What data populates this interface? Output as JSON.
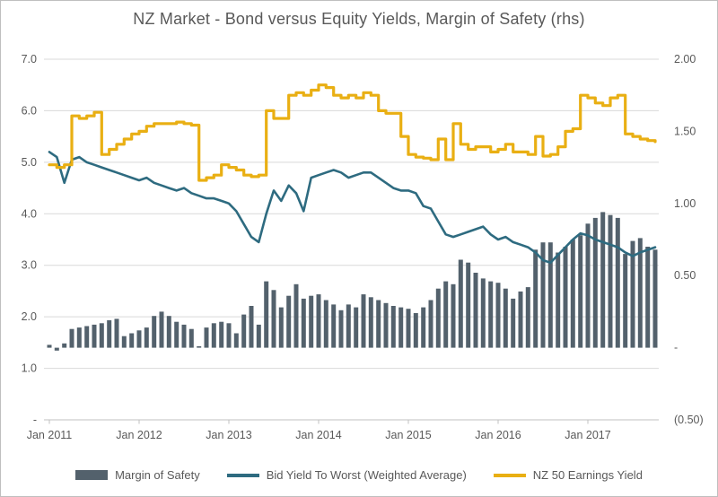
{
  "title": "NZ Market - Bond versus Equity Yields, Margin of Safety (rhs)",
  "axes": {
    "left": {
      "tick_labels": [
        "7.0",
        "6.0",
        "5.0",
        "4.0",
        "3.0",
        "2.0",
        "1.0",
        "-"
      ],
      "tick_values": [
        7,
        6,
        5,
        4,
        3,
        2,
        1,
        0
      ],
      "range": [
        0,
        7
      ]
    },
    "right": {
      "tick_labels": [
        "2.00",
        "1.50",
        "1.00",
        "0.50",
        "-",
        "(0.50)"
      ],
      "tick_values": [
        2.0,
        1.5,
        1.0,
        0.5,
        0,
        -0.5
      ],
      "range": [
        -0.5,
        2.0
      ]
    },
    "x": {
      "tick_labels": [
        "Jan 2011",
        "Jan 2012",
        "Jan 2013",
        "Jan 2014",
        "Jan 2015",
        "Jan 2016",
        "Jan 2017"
      ]
    }
  },
  "legend": {
    "items": [
      {
        "label": "Margin of Safety",
        "swatch": "bar",
        "color": "#53616C"
      },
      {
        "label": "Bid Yield To Worst (Weighted Average)",
        "swatch": "line",
        "color": "#2E6B80"
      },
      {
        "label": "NZ 50 Earnings Yield",
        "swatch": "line",
        "color": "#E9AF13"
      }
    ]
  },
  "colors": {
    "gridline": "#D9D9D9",
    "axis_line": "#C0C0C0",
    "text": "#595959",
    "background": "#FFFFFF",
    "border": "#BFBFBF",
    "margin_bar": "#53616C",
    "bond_line": "#2E6B80",
    "earnings_line": "#E9AF13"
  },
  "chart_data": {
    "type": "combo: bar + 2 lines",
    "title": "NZ Market - Bond versus Equity Yields, Margin of Safety (rhs)",
    "left_ylim": [
      0,
      7
    ],
    "right_ylim": [
      -0.5,
      2.0
    ],
    "grid": "horizontal gridlines at left-axis integers 0-7, legend at bottom",
    "x_year_ticks": [
      "Jan 2011",
      "Jan 2012",
      "Jan 2013",
      "Jan 2014",
      "Jan 2015",
      "Jan 2016",
      "Jan 2017"
    ],
    "x": [
      "2011-01",
      "2011-02",
      "2011-03",
      "2011-04",
      "2011-05",
      "2011-06",
      "2011-07",
      "2011-08",
      "2011-09",
      "2011-10",
      "2011-11",
      "2011-12",
      "2012-01",
      "2012-02",
      "2012-03",
      "2012-04",
      "2012-05",
      "2012-06",
      "2012-07",
      "2012-08",
      "2012-09",
      "2012-10",
      "2012-11",
      "2012-12",
      "2013-01",
      "2013-02",
      "2013-03",
      "2013-04",
      "2013-05",
      "2013-06",
      "2013-07",
      "2013-08",
      "2013-09",
      "2013-10",
      "2013-11",
      "2013-12",
      "2014-01",
      "2014-02",
      "2014-03",
      "2014-04",
      "2014-05",
      "2014-06",
      "2014-07",
      "2014-08",
      "2014-09",
      "2014-10",
      "2014-11",
      "2014-12",
      "2015-01",
      "2015-02",
      "2015-03",
      "2015-04",
      "2015-05",
      "2015-06",
      "2015-07",
      "2015-08",
      "2015-09",
      "2015-10",
      "2015-11",
      "2015-12",
      "2016-01",
      "2016-02",
      "2016-03",
      "2016-04",
      "2016-05",
      "2016-06",
      "2016-07",
      "2016-08",
      "2016-09",
      "2016-10",
      "2016-11",
      "2016-12",
      "2017-01",
      "2017-02",
      "2017-03",
      "2017-04",
      "2017-05",
      "2017-06",
      "2017-07",
      "2017-08",
      "2017-09",
      "2017-10"
    ],
    "series": [
      {
        "name": "Margin of Safety",
        "type": "bar",
        "axis": "right",
        "color": "#53616C",
        "values": [
          0.02,
          -0.02,
          0.03,
          0.13,
          0.14,
          0.15,
          0.16,
          0.17,
          0.19,
          0.2,
          0.08,
          0.1,
          0.12,
          0.14,
          0.22,
          0.25,
          0.22,
          0.18,
          0.16,
          0.13,
          0.01,
          0.14,
          0.17,
          0.18,
          0.17,
          0.1,
          0.23,
          0.29,
          0.16,
          0.46,
          0.4,
          0.28,
          0.36,
          0.44,
          0.34,
          0.36,
          0.37,
          0.33,
          0.3,
          0.26,
          0.3,
          0.28,
          0.37,
          0.35,
          0.33,
          0.31,
          0.29,
          0.28,
          0.27,
          0.24,
          0.28,
          0.33,
          0.41,
          0.46,
          0.44,
          0.61,
          0.59,
          0.52,
          0.48,
          0.46,
          0.45,
          0.41,
          0.34,
          0.39,
          0.42,
          0.68,
          0.73,
          0.73,
          0.66,
          0.7,
          0.75,
          0.78,
          0.86,
          0.9,
          0.94,
          0.92,
          0.9,
          0.65,
          0.74,
          0.76,
          0.7,
          0.68
        ]
      },
      {
        "name": "Bid Yield To Worst (Weighted Average)",
        "type": "line",
        "axis": "left",
        "color": "#2E6B80",
        "values": [
          5.2,
          5.1,
          4.6,
          5.05,
          5.1,
          5.0,
          4.95,
          4.9,
          4.85,
          4.8,
          4.75,
          4.7,
          4.65,
          4.7,
          4.6,
          4.55,
          4.5,
          4.45,
          4.5,
          4.4,
          4.35,
          4.3,
          4.3,
          4.25,
          4.2,
          4.05,
          3.8,
          3.55,
          3.45,
          4.0,
          4.45,
          4.25,
          4.55,
          4.4,
          4.05,
          4.7,
          4.75,
          4.8,
          4.85,
          4.8,
          4.7,
          4.75,
          4.8,
          4.8,
          4.7,
          4.6,
          4.5,
          4.45,
          4.45,
          4.4,
          4.15,
          4.1,
          3.85,
          3.6,
          3.55,
          3.6,
          3.65,
          3.7,
          3.75,
          3.6,
          3.5,
          3.55,
          3.45,
          3.4,
          3.35,
          3.25,
          3.1,
          3.05,
          3.2,
          3.35,
          3.5,
          3.62,
          3.58,
          3.5,
          3.45,
          3.4,
          3.35,
          3.25,
          3.18,
          3.25,
          3.3,
          3.35
        ]
      },
      {
        "name": "NZ 50 Earnings Yield",
        "type": "line",
        "axis": "left",
        "style": "step",
        "color": "#E9AF13",
        "values": [
          4.95,
          4.9,
          4.95,
          5.9,
          5.85,
          5.9,
          5.97,
          5.15,
          5.25,
          5.35,
          5.45,
          5.55,
          5.6,
          5.7,
          5.75,
          5.75,
          5.75,
          5.78,
          5.75,
          5.72,
          4.65,
          4.7,
          4.75,
          4.95,
          4.9,
          4.85,
          4.75,
          4.72,
          4.75,
          6.0,
          5.85,
          5.85,
          6.3,
          6.35,
          6.3,
          6.4,
          6.5,
          6.45,
          6.3,
          6.25,
          6.3,
          6.25,
          6.35,
          6.3,
          6.0,
          5.95,
          5.95,
          5.5,
          5.15,
          5.1,
          5.08,
          5.05,
          5.45,
          5.05,
          5.75,
          5.35,
          5.25,
          5.3,
          5.3,
          5.2,
          5.25,
          5.35,
          5.2,
          5.2,
          5.15,
          5.5,
          5.12,
          5.15,
          5.3,
          5.6,
          5.65,
          6.3,
          6.25,
          6.15,
          6.1,
          6.25,
          6.3,
          5.55,
          5.5,
          5.45,
          5.42,
          5.4
        ]
      }
    ]
  }
}
